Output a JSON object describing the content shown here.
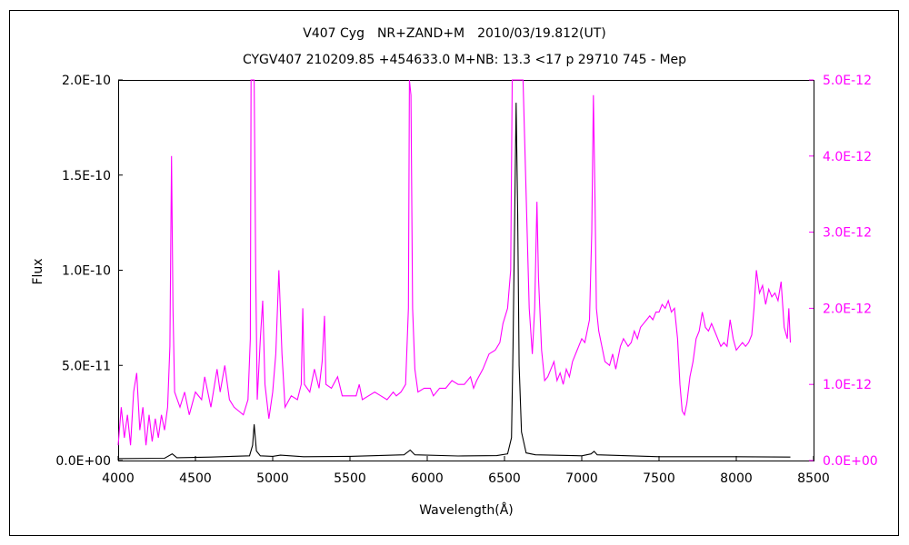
{
  "chart_data": {
    "type": "line",
    "title": "V407 Cyg　NR+ZAND+M　2010/03/19.812(UT)",
    "subtitle": "CYGV407 210209.85 +454633.0 M+NB: 13.3 <17 p 29710 745 - Mep",
    "xlabel": "Wavelength(Å)",
    "ylabel": "Flux",
    "xlim": [
      4000,
      8500
    ],
    "ylim": [
      0,
      2e-10
    ],
    "y2lim": [
      0,
      5e-12
    ],
    "x_ticks": [
      "4000",
      "4500",
      "5000",
      "5500",
      "6000",
      "6500",
      "7000",
      "7500",
      "8000",
      "8500"
    ],
    "y_ticks": [
      "0.0E+00",
      "5.0E-11",
      "1.0E-10",
      "1.5E-10",
      "2.0E-10"
    ],
    "y2_ticks": [
      "0.0E+00",
      "1.0E-12",
      "2.0E-12",
      "3.0E-12",
      "4.0E-12",
      "5.0E-12"
    ],
    "grid": false,
    "colors": {
      "primary": "#000000",
      "secondary": "#ff00ff",
      "axis": "#000000"
    },
    "series": [
      {
        "axis": "left",
        "color": "#000000",
        "points": [
          [
            4000,
            1e-12
          ],
          [
            4300,
            1.2e-12
          ],
          [
            4350,
            3.5e-12
          ],
          [
            4380,
            1.5e-12
          ],
          [
            4600,
            1.8e-12
          ],
          [
            4850,
            2.5e-12
          ],
          [
            4870,
            8e-12
          ],
          [
            4880,
            1.9e-11
          ],
          [
            4895,
            5e-12
          ],
          [
            4920,
            2.5e-12
          ],
          [
            5000,
            2.2e-12
          ],
          [
            5050,
            2.8e-12
          ],
          [
            5200,
            2e-12
          ],
          [
            5500,
            2.2e-12
          ],
          [
            5850,
            3e-12
          ],
          [
            5890,
            5.5e-12
          ],
          [
            5920,
            3e-12
          ],
          [
            6200,
            2.4e-12
          ],
          [
            6450,
            2.6e-12
          ],
          [
            6520,
            3.5e-12
          ],
          [
            6545,
            1.2e-11
          ],
          [
            6555,
            6e-11
          ],
          [
            6565,
            1.2e-10
          ],
          [
            6575,
            1.88e-10
          ],
          [
            6585,
            1.3e-10
          ],
          [
            6595,
            5e-11
          ],
          [
            6610,
            1.5e-11
          ],
          [
            6640,
            4e-12
          ],
          [
            6700,
            3e-12
          ],
          [
            7000,
            2.5e-12
          ],
          [
            7060,
            3.5e-12
          ],
          [
            7080,
            4.8e-12
          ],
          [
            7100,
            3e-12
          ],
          [
            7500,
            2e-12
          ],
          [
            8000,
            2e-12
          ],
          [
            8350,
            1.8e-12
          ]
        ]
      },
      {
        "axis": "right",
        "color": "#ff00ff",
        "points": [
          [
            4000,
            2e-13
          ],
          [
            4020,
            7e-13
          ],
          [
            4040,
            3e-13
          ],
          [
            4060,
            6e-13
          ],
          [
            4080,
            2e-13
          ],
          [
            4100,
            9e-13
          ],
          [
            4120,
            1.15e-12
          ],
          [
            4140,
            4e-13
          ],
          [
            4160,
            7e-13
          ],
          [
            4180,
            2e-13
          ],
          [
            4200,
            6e-13
          ],
          [
            4220,
            2.5e-13
          ],
          [
            4240,
            5.5e-13
          ],
          [
            4260,
            3e-13
          ],
          [
            4280,
            6e-13
          ],
          [
            4300,
            4e-13
          ],
          [
            4320,
            7e-13
          ],
          [
            4335,
            1.5e-12
          ],
          [
            4345,
            4e-12
          ],
          [
            4355,
            2e-12
          ],
          [
            4365,
            9e-13
          ],
          [
            4400,
            7e-13
          ],
          [
            4430,
            9e-13
          ],
          [
            4460,
            6e-13
          ],
          [
            4500,
            9e-13
          ],
          [
            4540,
            8e-13
          ],
          [
            4560,
            1.1e-12
          ],
          [
            4600,
            7e-13
          ],
          [
            4640,
            1.2e-12
          ],
          [
            4660,
            9e-13
          ],
          [
            4690,
            1.25e-12
          ],
          [
            4720,
            8e-13
          ],
          [
            4750,
            7e-13
          ],
          [
            4780,
            6.5e-13
          ],
          [
            4810,
            6e-13
          ],
          [
            4840,
            8e-13
          ],
          [
            4855,
            1.6e-12
          ],
          [
            4860,
            5e-12
          ],
          [
            4880,
            5e-12
          ],
          [
            4890,
            2.5e-12
          ],
          [
            4900,
            8e-13
          ],
          [
            4920,
            1.6e-12
          ],
          [
            4935,
            2.1e-12
          ],
          [
            4950,
            1e-12
          ],
          [
            4975,
            5.5e-13
          ],
          [
            5000,
            9e-13
          ],
          [
            5020,
            1.4e-12
          ],
          [
            5040,
            2.5e-12
          ],
          [
            5060,
            1.4e-12
          ],
          [
            5080,
            7e-13
          ],
          [
            5120,
            8.5e-13
          ],
          [
            5160,
            8e-13
          ],
          [
            5185,
            1e-12
          ],
          [
            5195,
            2e-12
          ],
          [
            5205,
            1e-12
          ],
          [
            5240,
            9e-13
          ],
          [
            5270,
            1.2e-12
          ],
          [
            5300,
            9.5e-13
          ],
          [
            5320,
            1.3e-12
          ],
          [
            5335,
            1.9e-12
          ],
          [
            5345,
            1e-12
          ],
          [
            5380,
            9.5e-13
          ],
          [
            5420,
            1.1e-12
          ],
          [
            5450,
            8.5e-13
          ],
          [
            5500,
            8.5e-13
          ],
          [
            5540,
            8.5e-13
          ],
          [
            5560,
            1e-12
          ],
          [
            5580,
            8e-13
          ],
          [
            5620,
            8.5e-13
          ],
          [
            5660,
            9e-13
          ],
          [
            5700,
            8.5e-13
          ],
          [
            5740,
            8e-13
          ],
          [
            5780,
            9e-13
          ],
          [
            5800,
            8.5e-13
          ],
          [
            5830,
            9e-13
          ],
          [
            5860,
            1e-12
          ],
          [
            5878,
            2e-12
          ],
          [
            5885,
            5e-12
          ],
          [
            5895,
            4.8e-12
          ],
          [
            5905,
            2e-12
          ],
          [
            5920,
            1.2e-12
          ],
          [
            5940,
            9e-13
          ],
          [
            5980,
            9.5e-13
          ],
          [
            6000,
            9.5e-13
          ],
          [
            6020,
            9.5e-13
          ],
          [
            6040,
            8.5e-13
          ],
          [
            6080,
            9.5e-13
          ],
          [
            6120,
            9.5e-13
          ],
          [
            6160,
            1.05e-12
          ],
          [
            6200,
            1e-12
          ],
          [
            6240,
            1e-12
          ],
          [
            6280,
            1.1e-12
          ],
          [
            6300,
            9.5e-13
          ],
          [
            6320,
            1.05e-12
          ],
          [
            6360,
            1.2e-12
          ],
          [
            6400,
            1.4e-12
          ],
          [
            6440,
            1.45e-12
          ],
          [
            6470,
            1.55e-12
          ],
          [
            6490,
            1.8e-12
          ],
          [
            6520,
            2e-12
          ],
          [
            6540,
            2.5e-12
          ],
          [
            6550,
            5e-12
          ],
          [
            6620,
            5e-12
          ],
          [
            6640,
            3.5e-12
          ],
          [
            6660,
            2e-12
          ],
          [
            6680,
            1.4e-12
          ],
          [
            6695,
            2e-12
          ],
          [
            6710,
            3.4e-12
          ],
          [
            6720,
            2.4e-12
          ],
          [
            6740,
            1.45e-12
          ],
          [
            6760,
            1.05e-12
          ],
          [
            6780,
            1.1e-12
          ],
          [
            6800,
            1.2e-12
          ],
          [
            6820,
            1.3e-12
          ],
          [
            6840,
            1.05e-12
          ],
          [
            6860,
            1.15e-12
          ],
          [
            6880,
            1e-12
          ],
          [
            6900,
            1.2e-12
          ],
          [
            6920,
            1.1e-12
          ],
          [
            6940,
            1.3e-12
          ],
          [
            6970,
            1.45e-12
          ],
          [
            7000,
            1.6e-12
          ],
          [
            7020,
            1.55e-12
          ],
          [
            7050,
            1.85e-12
          ],
          [
            7065,
            3e-12
          ],
          [
            7075,
            4.8e-12
          ],
          [
            7085,
            3.5e-12
          ],
          [
            7095,
            2e-12
          ],
          [
            7110,
            1.7e-12
          ],
          [
            7130,
            1.5e-12
          ],
          [
            7150,
            1.3e-12
          ],
          [
            7180,
            1.25e-12
          ],
          [
            7200,
            1.4e-12
          ],
          [
            7220,
            1.2e-12
          ],
          [
            7250,
            1.5e-12
          ],
          [
            7270,
            1.6e-12
          ],
          [
            7300,
            1.5e-12
          ],
          [
            7320,
            1.55e-12
          ],
          [
            7340,
            1.7e-12
          ],
          [
            7360,
            1.6e-12
          ],
          [
            7380,
            1.75e-12
          ],
          [
            7400,
            1.8e-12
          ],
          [
            7420,
            1.85e-12
          ],
          [
            7440,
            1.9e-12
          ],
          [
            7460,
            1.85e-12
          ],
          [
            7480,
            1.95e-12
          ],
          [
            7500,
            1.95e-12
          ],
          [
            7520,
            2.05e-12
          ],
          [
            7540,
            2e-12
          ],
          [
            7560,
            2.1e-12
          ],
          [
            7580,
            1.95e-12
          ],
          [
            7600,
            2e-12
          ],
          [
            7620,
            1.6e-12
          ],
          [
            7635,
            1e-12
          ],
          [
            7650,
            6.5e-13
          ],
          [
            7665,
            6e-13
          ],
          [
            7680,
            7.5e-13
          ],
          [
            7700,
            1.1e-12
          ],
          [
            7720,
            1.3e-12
          ],
          [
            7740,
            1.6e-12
          ],
          [
            7760,
            1.7e-12
          ],
          [
            7780,
            1.95e-12
          ],
          [
            7800,
            1.75e-12
          ],
          [
            7820,
            1.7e-12
          ],
          [
            7840,
            1.8e-12
          ],
          [
            7860,
            1.7e-12
          ],
          [
            7880,
            1.6e-12
          ],
          [
            7900,
            1.5e-12
          ],
          [
            7920,
            1.55e-12
          ],
          [
            7940,
            1.5e-12
          ],
          [
            7960,
            1.85e-12
          ],
          [
            7980,
            1.6e-12
          ],
          [
            8000,
            1.45e-12
          ],
          [
            8020,
            1.5e-12
          ],
          [
            8040,
            1.55e-12
          ],
          [
            8060,
            1.5e-12
          ],
          [
            8080,
            1.55e-12
          ],
          [
            8100,
            1.65e-12
          ],
          [
            8115,
            2e-12
          ],
          [
            8130,
            2.5e-12
          ],
          [
            8150,
            2.2e-12
          ],
          [
            8170,
            2.3e-12
          ],
          [
            8190,
            2.05e-12
          ],
          [
            8210,
            2.25e-12
          ],
          [
            8230,
            2.15e-12
          ],
          [
            8250,
            2.2e-12
          ],
          [
            8270,
            2.1e-12
          ],
          [
            8290,
            2.35e-12
          ],
          [
            8310,
            1.75e-12
          ],
          [
            8330,
            1.6e-12
          ],
          [
            8340,
            2e-12
          ],
          [
            8350,
            1.55e-12
          ]
        ]
      }
    ]
  }
}
